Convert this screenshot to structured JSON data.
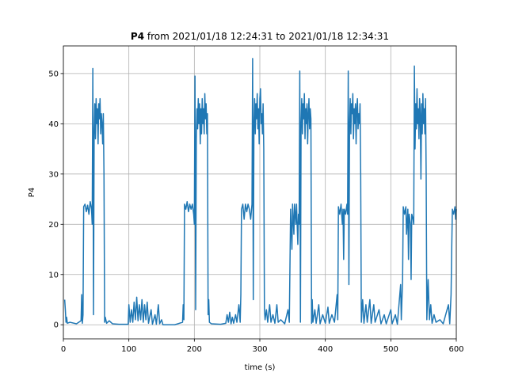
{
  "chart_data": {
    "type": "line",
    "title": [
      "P4",
      "from 2021/01/18 12:24:31 to 2021/01/18 12:34:31"
    ],
    "xlabel": "time (s)",
    "ylabel": "P4",
    "color": "#1f77b4",
    "grid": true,
    "xlim": [
      0,
      600
    ],
    "xticks": [
      0,
      100,
      200,
      300,
      400,
      500,
      600
    ],
    "ylim": [
      -2.8,
      55.5
    ],
    "yticks": [
      0,
      10,
      20,
      30,
      40,
      50
    ],
    "x": [
      2,
      3,
      4,
      5,
      6,
      10,
      20,
      27,
      28,
      29,
      30,
      31,
      33,
      35,
      37,
      39,
      41,
      43,
      44,
      45,
      46,
      47,
      48,
      49,
      50,
      51,
      52,
      53,
      54,
      55,
      56,
      57,
      58,
      59,
      60,
      61,
      62,
      63,
      64,
      66,
      70,
      75,
      85,
      99,
      100,
      102,
      104,
      106,
      108,
      110,
      112,
      114,
      116,
      118,
      120,
      122,
      124,
      126,
      128,
      130,
      134,
      136,
      140,
      142,
      145,
      147,
      150,
      152,
      170,
      182,
      183,
      184,
      185,
      187,
      189,
      191,
      193,
      195,
      197,
      199,
      200,
      201,
      202,
      203,
      204,
      205,
      206,
      207,
      208,
      209,
      210,
      211,
      212,
      213,
      214,
      215,
      216,
      217,
      218,
      219,
      220,
      221,
      222,
      223,
      226,
      240,
      248,
      250,
      252,
      254,
      256,
      258,
      260,
      263,
      265,
      268,
      270,
      271,
      272,
      274,
      276,
      278,
      280,
      282,
      284,
      286,
      288,
      289,
      290,
      291,
      292,
      293,
      294,
      295,
      296,
      297,
      298,
      299,
      300,
      301,
      302,
      303,
      304,
      305,
      306,
      307,
      308,
      310,
      312,
      315,
      317,
      320,
      323,
      326,
      328,
      332,
      338,
      343,
      345,
      347,
      349,
      350,
      352,
      353,
      355,
      356,
      358,
      359,
      360,
      361,
      362,
      363,
      364,
      365,
      366,
      367,
      368,
      369,
      370,
      371,
      372,
      373,
      374,
      375,
      376,
      377,
      378,
      379,
      380,
      381,
      384,
      386,
      390,
      392,
      396,
      400,
      404,
      406,
      410,
      414,
      418,
      419,
      420,
      422,
      424,
      426,
      427,
      428,
      429,
      431,
      433,
      434,
      435,
      436,
      437,
      438,
      439,
      440,
      441,
      442,
      443,
      444,
      445,
      446,
      447,
      448,
      449,
      450,
      451,
      452,
      453,
      454,
      455,
      457,
      459,
      462,
      464,
      468,
      470,
      474,
      476,
      482,
      485,
      490,
      493,
      500,
      502,
      507,
      510,
      515,
      516,
      518,
      519,
      521,
      523,
      524,
      526,
      527,
      528,
      530,
      531,
      532,
      534,
      535,
      536,
      537,
      538,
      539,
      540,
      541,
      542,
      543,
      544,
      545,
      546,
      547,
      548,
      549,
      550,
      551,
      552,
      553,
      554,
      555,
      557,
      559,
      561,
      563,
      566,
      569,
      575,
      580,
      588,
      590,
      592,
      593,
      594,
      596,
      598,
      599,
      600
    ],
    "values": [
      5,
      3,
      0.5,
      1.5,
      0.3,
      0.5,
      0.2,
      0.8,
      6,
      0.3,
      2,
      23.5,
      24,
      22.5,
      23.8,
      22,
      24.5,
      23,
      20,
      51,
      2,
      38,
      44,
      37,
      45,
      40,
      43,
      36,
      44,
      41,
      45,
      38,
      42,
      40,
      36,
      42,
      30,
      0.5,
      1.5,
      0.3,
      0.8,
      0.2,
      0.1,
      0.1,
      4,
      0.5,
      3,
      0.5,
      4.5,
      1,
      5.5,
      0.8,
      4,
      1,
      5,
      0.5,
      4,
      1,
      4.5,
      0.3,
      3,
      0.1,
      2,
      0.1,
      4,
      0.2,
      1,
      0,
      0,
      0.5,
      4,
      1,
      24,
      23,
      24.5,
      22.5,
      24,
      23,
      24,
      22,
      20,
      49.5,
      3,
      37,
      43,
      39,
      45,
      40,
      44,
      36,
      43,
      38,
      45,
      40,
      43,
      38,
      46,
      41,
      44,
      38,
      42,
      2,
      5,
      0.5,
      0.2,
      0.1,
      0.3,
      2,
      0.5,
      2.5,
      0.2,
      1.5,
      0.3,
      2,
      0.5,
      4,
      0.5,
      6,
      23,
      24,
      21,
      24,
      22.5,
      24,
      23,
      21,
      24,
      53,
      5,
      40,
      45,
      38,
      44,
      41,
      46,
      39,
      43,
      36,
      45,
      47,
      40,
      42,
      38,
      44,
      35,
      3,
      1,
      3,
      0.5,
      4,
      0.5,
      2,
      0.3,
      4,
      0.5,
      1,
      0.2,
      3,
      0.5,
      23,
      15,
      24,
      18,
      24,
      20,
      24,
      16,
      22,
      20,
      50.5,
      0.5,
      40,
      45,
      38,
      44,
      41,
      46,
      37,
      43,
      40,
      44,
      36,
      42,
      45,
      39,
      43,
      41,
      0.3,
      5,
      0.5,
      3,
      0.3,
      4,
      0.2,
      2,
      0.3,
      3.5,
      0.3,
      2,
      0.5,
      6,
      1,
      23.5,
      22,
      24,
      20,
      23,
      13,
      23,
      22,
      24,
      22,
      50.5,
      8,
      40,
      45,
      38,
      44,
      42,
      46,
      37,
      43,
      40,
      44,
      36,
      43,
      45,
      39,
      42,
      40,
      44,
      30,
      0.5,
      5,
      0.3,
      4,
      0.5,
      5,
      0.3,
      4,
      0.5,
      3,
      0.2,
      2,
      0.2,
      3,
      0.2,
      2,
      0.1,
      8,
      1,
      9,
      23.5,
      22,
      23.5,
      18,
      23,
      13,
      22,
      20,
      9,
      22,
      21,
      20,
      51.5,
      35,
      44,
      39,
      47,
      40,
      43,
      37,
      45,
      42,
      29,
      44,
      38,
      46,
      40,
      43,
      38,
      45,
      30,
      1,
      9,
      1,
      4,
      0.3,
      2,
      0.5,
      1,
      0.2,
      4,
      0.2,
      6,
      15,
      23,
      22,
      23.5,
      21,
      23
    ]
  }
}
